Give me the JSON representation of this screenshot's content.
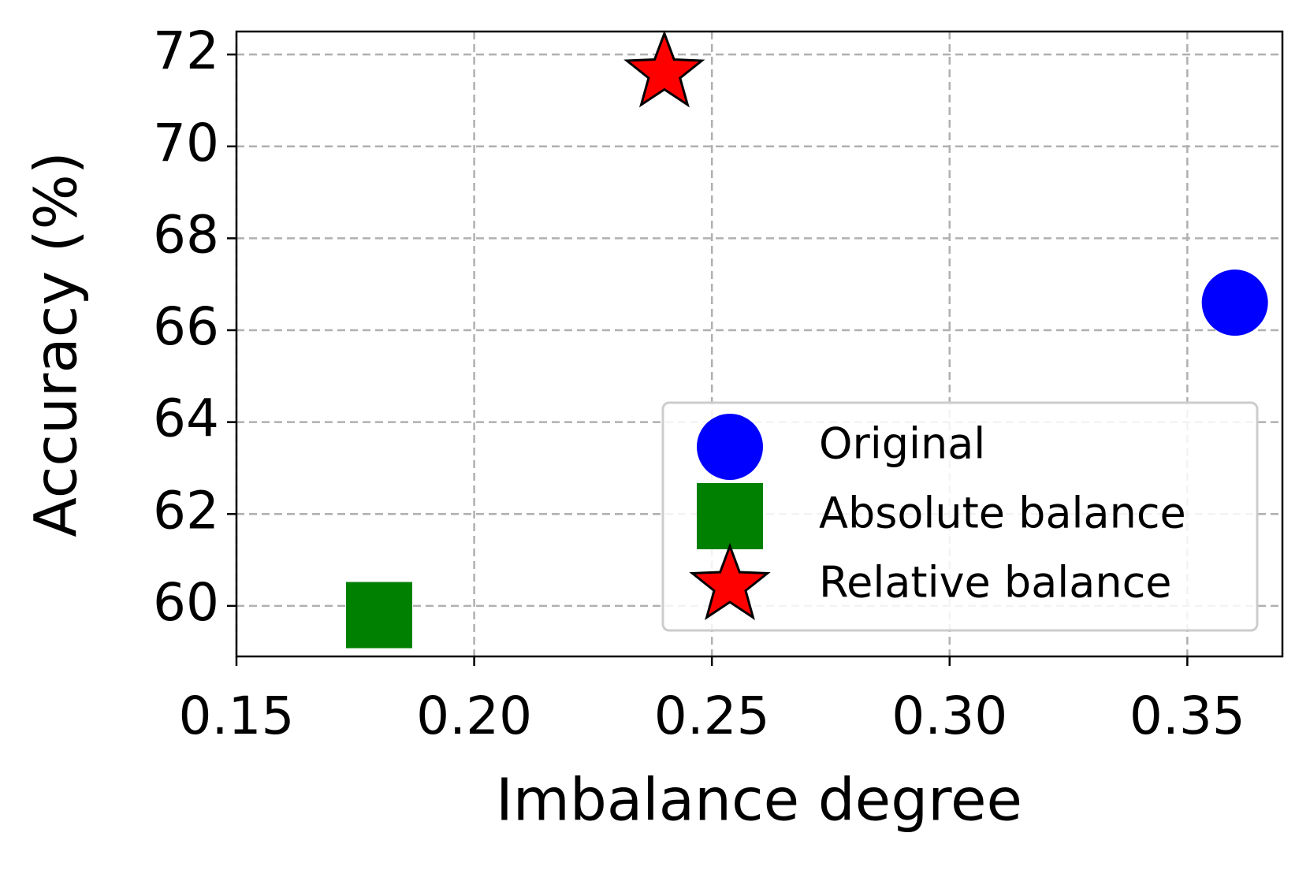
{
  "chart_data": {
    "type": "scatter",
    "xlabel": "Imbalance degree",
    "ylabel": "Accuracy (%)",
    "xlim": [
      0.15,
      0.37
    ],
    "ylim": [
      58.9,
      72.5
    ],
    "xticks": [
      {
        "value": 0.15,
        "label": "0.15"
      },
      {
        "value": 0.2,
        "label": "0.20"
      },
      {
        "value": 0.25,
        "label": "0.25"
      },
      {
        "value": 0.3,
        "label": "0.30"
      },
      {
        "value": 0.35,
        "label": "0.35"
      }
    ],
    "yticks": [
      60,
      62,
      64,
      66,
      68,
      70,
      72
    ],
    "grid": true,
    "legend": "lower right",
    "series": [
      {
        "name": "Original",
        "color": "#0000ff",
        "marker": "circle",
        "x": [
          0.36
        ],
        "values": [
          66.6
        ]
      },
      {
        "name": "Absolute balance",
        "color": "#008000",
        "marker": "square",
        "x": [
          0.18
        ],
        "values": [
          59.8
        ]
      },
      {
        "name": "Relative balance",
        "color": "#ff0000",
        "marker": "star",
        "x": [
          0.24
        ],
        "values": [
          71.6
        ]
      }
    ]
  }
}
